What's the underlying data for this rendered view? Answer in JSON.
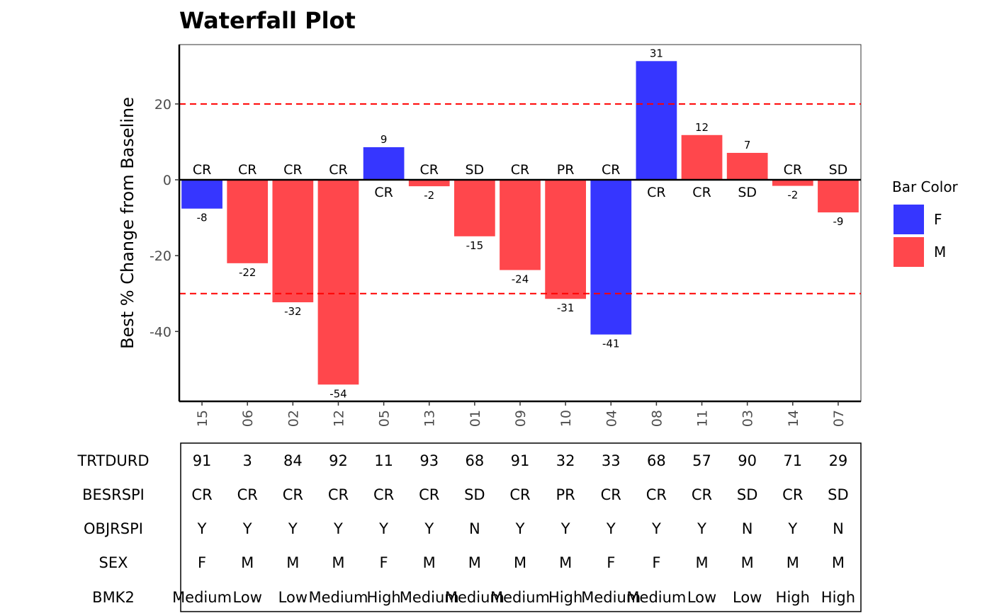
{
  "chart_data": {
    "type": "bar",
    "title": "Waterfall Plot",
    "ylabel": "Best % Change from Baseline",
    "xlabel": "",
    "ylim": [
      -58,
      35
    ],
    "yticks": [
      20,
      0,
      -20,
      -40
    ],
    "reference_lines": [
      20,
      -30
    ],
    "categories": [
      "15",
      "06",
      "02",
      "12",
      "05",
      "13",
      "01",
      "09",
      "10",
      "04",
      "08",
      "11",
      "03",
      "14",
      "07"
    ],
    "values": [
      -7.6,
      -22,
      -32.3,
      -54,
      8.6,
      -1.7,
      -14.9,
      -23.8,
      -31.4,
      -40.8,
      31.3,
      11.8,
      7.1,
      -1.6,
      -8.6
    ],
    "value_labels": [
      "-8",
      "-22",
      "-32",
      "-54",
      "9",
      "-2",
      "-15",
      "-24",
      "-31",
      "-41",
      "31",
      "12",
      "7",
      "-2",
      "-9"
    ],
    "response_labels": [
      "CR",
      "CR",
      "CR",
      "CR",
      "CR",
      "CR",
      "SD",
      "CR",
      "PR",
      "CR",
      "CR",
      "CR",
      "SD",
      "CR",
      "SD"
    ],
    "bar_groups": [
      "F",
      "M",
      "M",
      "M",
      "F",
      "M",
      "M",
      "M",
      "M",
      "F",
      "F",
      "M",
      "M",
      "M",
      "M"
    ],
    "legend": {
      "title": "Bar Color",
      "placement": "right",
      "items": [
        {
          "label": "F",
          "color": "#3636ff"
        },
        {
          "label": "M",
          "color": "#ff474c"
        }
      ]
    },
    "ref_line_color": "#ff0000",
    "grid": false,
    "table": {
      "row_labels": [
        "TRTDURD",
        "BESRSPI",
        "OBJRSPI",
        "SEX",
        "BMK2"
      ],
      "rows": [
        [
          "91",
          "3",
          "84",
          "92",
          "11",
          "93",
          "68",
          "91",
          "32",
          "33",
          "68",
          "57",
          "90",
          "71",
          "29"
        ],
        [
          "CR",
          "CR",
          "CR",
          "CR",
          "CR",
          "CR",
          "SD",
          "CR",
          "PR",
          "CR",
          "CR",
          "CR",
          "SD",
          "CR",
          "SD"
        ],
        [
          "Y",
          "Y",
          "Y",
          "Y",
          "Y",
          "Y",
          "N",
          "Y",
          "Y",
          "Y",
          "Y",
          "Y",
          "N",
          "Y",
          "N"
        ],
        [
          "F",
          "M",
          "M",
          "M",
          "F",
          "M",
          "M",
          "M",
          "M",
          "F",
          "F",
          "M",
          "M",
          "M",
          "M"
        ],
        [
          "Medium",
          "Low",
          "Low",
          "Medium",
          "High",
          "Medium",
          "Medium",
          "Medium",
          "High",
          "Medium",
          "Medium",
          "Low",
          "Low",
          "High",
          "High"
        ]
      ]
    }
  }
}
